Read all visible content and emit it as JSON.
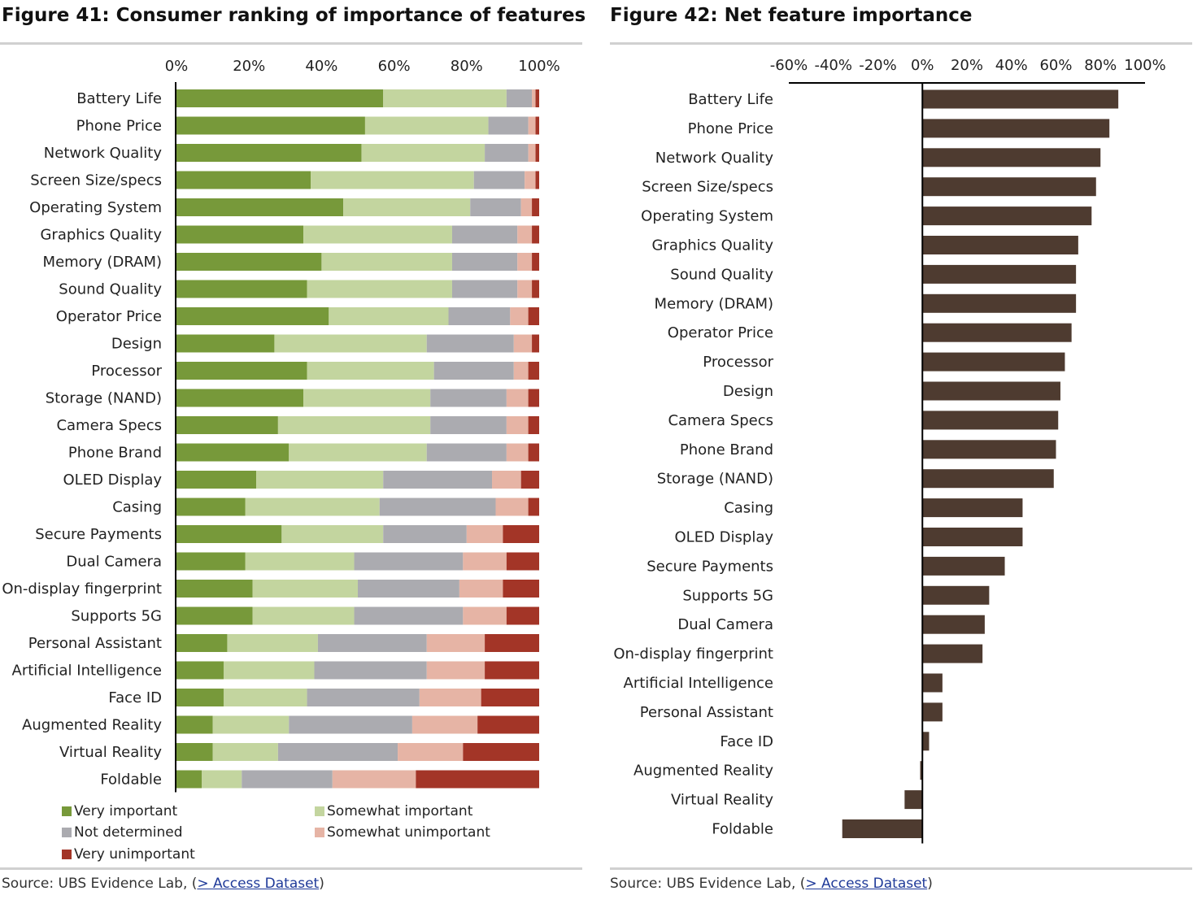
{
  "figure41": {
    "title": "Figure 41: Consumer ranking of importance of features",
    "source_prefix": "Source:  UBS Evidence Lab, (",
    "source_link": "> Access Dataset",
    "source_suffix": ")"
  },
  "figure42": {
    "title": "Figure 42: Net feature importance",
    "source_prefix": "Source:  UBS Evidence Lab, (",
    "source_link": "> Access Dataset",
    "source_suffix": ")"
  },
  "chart_data": [
    {
      "type": "bar",
      "orientation": "horizontal",
      "stacked": true,
      "title": "Figure 41: Consumer ranking of importance of features",
      "xlim": [
        0,
        100
      ],
      "x_ticks": [
        "0%",
        "20%",
        "40%",
        "60%",
        "80%",
        "100%"
      ],
      "x_axis_position": "top",
      "grid": false,
      "legend_position": "bottom",
      "categories": [
        "Battery Life",
        "Phone Price",
        "Network Quality",
        "Screen Size/specs",
        "Operating System",
        "Graphics Quality",
        "Memory (DRAM)",
        "Sound Quality",
        "Operator Price",
        "Design",
        "Processor",
        "Storage (NAND)",
        "Camera Specs",
        "Phone Brand",
        "OLED Display",
        "Casing",
        "Secure Payments",
        "Dual Camera",
        "On-display fingerprint",
        "Supports 5G",
        "Personal Assistant",
        "Artificial Intelligence",
        "Face ID",
        "Augmented Reality",
        "Virtual Reality",
        "Foldable"
      ],
      "series": [
        {
          "name": "Very important",
          "color": "#77993a",
          "values": [
            57,
            52,
            51,
            37,
            46,
            35,
            40,
            36,
            42,
            27,
            36,
            35,
            28,
            31,
            22,
            19,
            29,
            19,
            21,
            21,
            14,
            13,
            13,
            10,
            10,
            7
          ]
        },
        {
          "name": "Somewhat important",
          "color": "#c3d59f",
          "values": [
            34,
            34,
            34,
            45,
            35,
            41,
            36,
            40,
            33,
            42,
            35,
            35,
            42,
            38,
            35,
            37,
            28,
            30,
            29,
            28,
            25,
            25,
            23,
            21,
            18,
            11
          ]
        },
        {
          "name": "Not determined",
          "color": "#ababb0",
          "values": [
            7,
            11,
            12,
            14,
            14,
            18,
            18,
            18,
            17,
            24,
            22,
            21,
            21,
            22,
            30,
            32,
            23,
            30,
            28,
            30,
            30,
            31,
            31,
            34,
            33,
            25
          ]
        },
        {
          "name": "Somewhat unimportant",
          "color": "#e6b4a5",
          "values": [
            1,
            2,
            2,
            3,
            3,
            4,
            4,
            4,
            5,
            5,
            4,
            6,
            6,
            6,
            8,
            9,
            10,
            12,
            12,
            12,
            16,
            16,
            17,
            18,
            18,
            23
          ]
        },
        {
          "name": "Very unimportant",
          "color": "#a33527",
          "values": [
            1,
            1,
            1,
            1,
            2,
            2,
            2,
            2,
            3,
            2,
            3,
            3,
            3,
            3,
            5,
            3,
            10,
            9,
            10,
            9,
            15,
            15,
            16,
            17,
            21,
            34
          ]
        }
      ]
    },
    {
      "type": "bar",
      "orientation": "horizontal",
      "title": "Figure 42: Net feature importance",
      "xlim": [
        -60,
        100
      ],
      "x_ticks": [
        "-60%",
        "-40%",
        "-20%",
        "0%",
        "20%",
        "40%",
        "60%",
        "80%",
        "100%"
      ],
      "x_axis_position": "top",
      "grid": false,
      "color": "#4e3b30",
      "categories": [
        "Battery Life",
        "Phone Price",
        "Network Quality",
        "Screen Size/specs",
        "Operating System",
        "Graphics Quality",
        "Sound Quality",
        "Memory (DRAM)",
        "Operator Price",
        "Processor",
        "Design",
        "Camera Specs",
        "Phone Brand",
        "Storage (NAND)",
        "Casing",
        "OLED Display",
        "Secure Payments",
        "Supports 5G",
        "Dual Camera",
        "On-display fingerprint",
        "Artificial Intelligence",
        "Personal Assistant",
        "Face ID",
        "Augmented Reality",
        "Virtual Reality",
        "Foldable"
      ],
      "values": [
        88,
        84,
        80,
        78,
        76,
        70,
        69,
        69,
        67,
        64,
        62,
        61,
        60,
        59,
        45,
        45,
        37,
        30,
        28,
        27,
        9,
        9,
        3,
        -1,
        -8,
        -36
      ]
    }
  ]
}
